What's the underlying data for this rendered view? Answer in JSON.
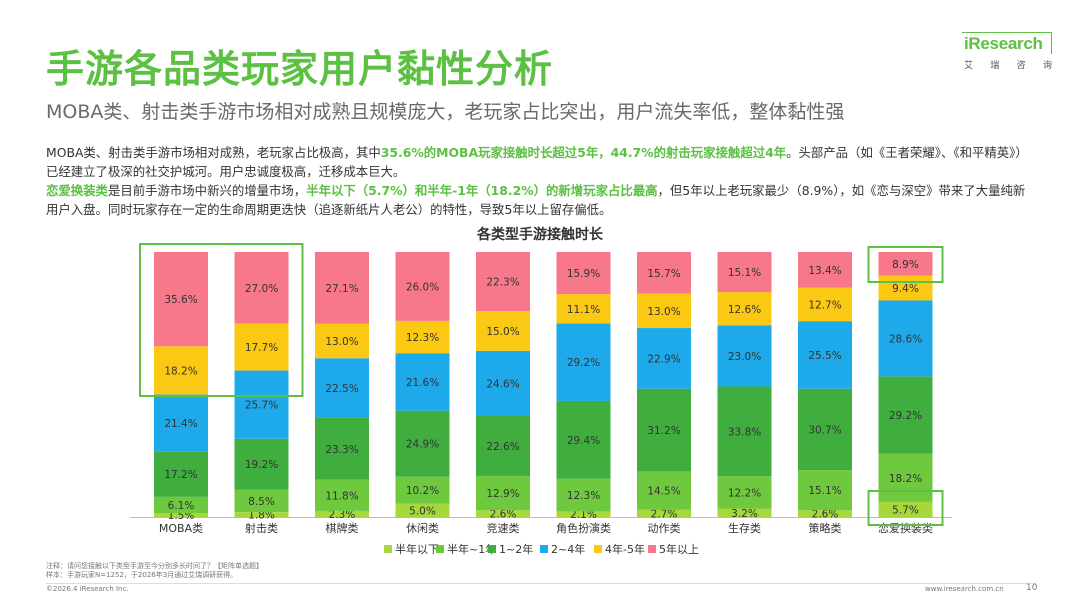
{
  "header": {
    "title": "手游各品类玩家用户黏性分析",
    "subtitle": "MOBA类、射击类手游市场相对成熟且规模庞大，老玩家占比突出，用户流失率低，整体黏性强"
  },
  "brand": {
    "logo_text": "iResearch",
    "logo_cn": [
      "艾",
      "瑞",
      "咨",
      "询"
    ],
    "accent_color": "#5cc043"
  },
  "paragraph": {
    "s1": "MOBA类、射击类手游市场相对成熟，老玩家占比极高，其中",
    "s2": "35.6%的MOBA玩家接触时长超过5年，44.7%的射击玩家接触超过4年",
    "s3": "。头部产品（如《王者荣耀》、《和平精英》）已经建立了极深的社交护城河。用户忠诚度极高，迁移成本巨大。",
    "s4": "恋爱换装类",
    "s5": "是目前手游市场中新兴的增量市场，",
    "s6": "半年以下（5.7%）和半年-1年（18.2%）的新增玩家占比最高",
    "s7": "，但5年以上老玩家最少（8.9%），如《恋与深空》带来了大量纯新用户入盘。同时玩家存在一定的生命周期更迭快（追逐新纸片人老公）的特性，导致5年以上留存偏低。"
  },
  "chart_data": {
    "type": "bar",
    "stacked": true,
    "title": "各类型手游接触时长",
    "categories": [
      "MOBA类",
      "射击类",
      "棋牌类",
      "休闲类",
      "竞速类",
      "角色扮演类",
      "动作类",
      "生存类",
      "策略类",
      "恋爱换装类"
    ],
    "series": [
      {
        "name": "半年以下",
        "color": "#a6d83c",
        "values": [
          1.5,
          1.8,
          2.3,
          5.0,
          2.6,
          2.1,
          2.7,
          3.2,
          2.6,
          5.7
        ]
      },
      {
        "name": "半年~1年",
        "color": "#6fc93f",
        "values": [
          6.1,
          8.5,
          11.8,
          10.2,
          12.9,
          12.3,
          14.5,
          12.2,
          15.1,
          18.2
        ]
      },
      {
        "name": "1~2年",
        "color": "#3fae3e",
        "values": [
          17.2,
          19.2,
          23.3,
          24.9,
          22.6,
          29.4,
          31.2,
          33.8,
          30.7,
          29.2
        ]
      },
      {
        "name": "2~4年",
        "color": "#1ea9eb",
        "values": [
          21.4,
          25.7,
          22.5,
          21.6,
          24.6,
          29.2,
          22.9,
          23.0,
          25.5,
          28.6
        ]
      },
      {
        "name": "4年-5年",
        "color": "#fbc913",
        "values": [
          18.2,
          17.7,
          13.0,
          12.3,
          15.0,
          11.1,
          13.0,
          12.6,
          12.7,
          9.4
        ]
      },
      {
        "name": "5年以上",
        "color": "#f7788a",
        "values": [
          35.6,
          27.0,
          27.1,
          26.0,
          22.3,
          15.9,
          15.7,
          15.1,
          13.4,
          8.9
        ]
      }
    ],
    "value_suffix": "%",
    "ylim": [
      0,
      100
    ],
    "highlights": [
      "MOBA类",
      "射击类",
      "恋爱换装类"
    ]
  },
  "footer": {
    "note_line1": "注释：请问您接触以下类型手游至今分别多长时间了？【矩阵单选题】",
    "note_line2": "样本：手游玩家N=1252，于2026年3月通过艾瑞调研获得。",
    "copyright": "©2026.4 iResearch Inc.",
    "url": "www.iresearch.com.cn",
    "page": "10"
  }
}
